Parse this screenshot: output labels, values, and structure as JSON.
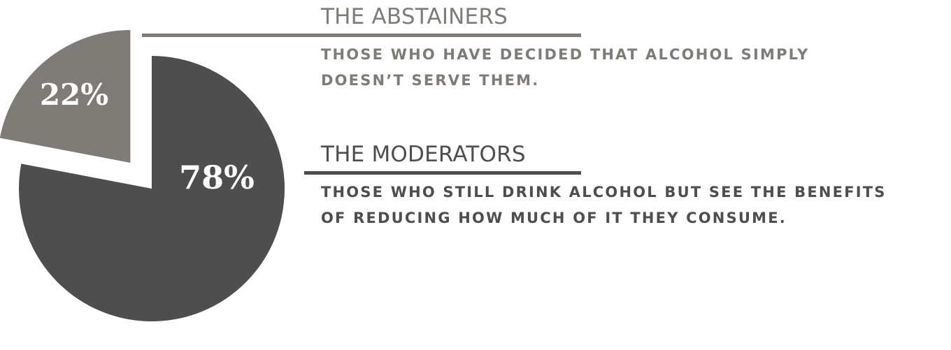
{
  "colors": {
    "abstainers": "#7f7c78",
    "moderators": "#4e4e4e",
    "label_text": "#ffffff"
  },
  "chart_data": {
    "type": "pie",
    "title": "",
    "slices": [
      {
        "name": "THE ABSTAINERS",
        "value": 22,
        "label": "22%",
        "exploded": true
      },
      {
        "name": "THE MODERATORS",
        "value": 78,
        "label": "78%",
        "exploded": false
      }
    ]
  },
  "groups": [
    {
      "title": "THE ABSTAINERS",
      "description": "THOSE WHO HAVE DECIDED THAT ALCOHOL SIMPLY\nDOESN’T SERVE THEM."
    },
    {
      "title": "THE MODERATORS",
      "description": "THOSE WHO STILL DRINK ALCOHOL BUT SEE THE BENEFITS\nOF REDUCING HOW MUCH OF IT THEY CONSUME."
    }
  ]
}
